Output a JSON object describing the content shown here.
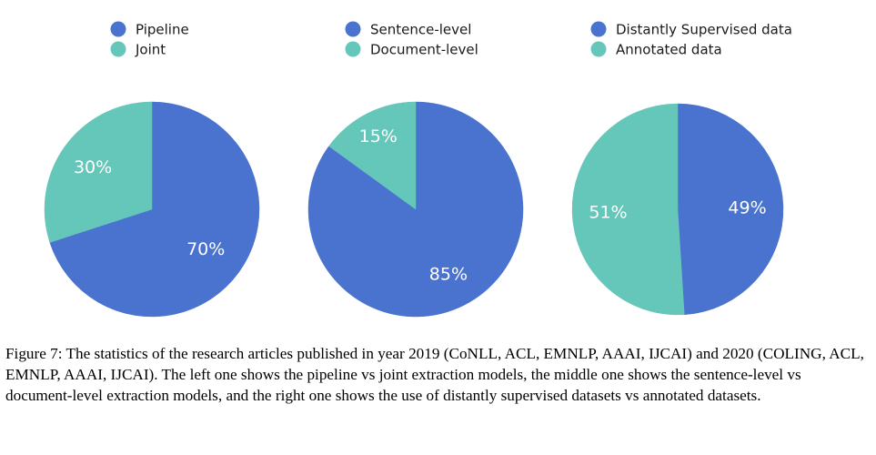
{
  "colors": {
    "blue": "#4a72cf",
    "teal": "#65c6ba"
  },
  "chart_data": [
    {
      "type": "pie",
      "position": "left",
      "legend": [
        "Pipeline",
        "Joint"
      ],
      "slices": [
        {
          "label": "Pipeline",
          "value": 70,
          "display": "70%",
          "color": "#4a72cf"
        },
        {
          "label": "Joint",
          "value": 30,
          "display": "30%",
          "color": "#65c6ba"
        }
      ]
    },
    {
      "type": "pie",
      "position": "middle",
      "legend": [
        "Sentence-level",
        "Document-level"
      ],
      "slices": [
        {
          "label": "Sentence-level",
          "value": 85,
          "display": "85%",
          "color": "#4a72cf"
        },
        {
          "label": "Document-level",
          "value": 15,
          "display": "15%",
          "color": "#65c6ba"
        }
      ]
    },
    {
      "type": "pie",
      "position": "right",
      "legend": [
        "Distantly Supervised data",
        "Annotated data"
      ],
      "slices": [
        {
          "label": "Distantly Supervised data",
          "value": 49,
          "display": "49%",
          "color": "#4a72cf"
        },
        {
          "label": "Annotated data",
          "value": 51,
          "display": "51%",
          "color": "#65c6ba"
        }
      ]
    }
  ],
  "caption": "Figure 7: The statistics of the research articles published in year 2019 (CoNLL, ACL, EMNLP, AAAI, IJCAI) and 2020 (COLING, ACL, EMNLP, AAAI, IJCAI). The left one shows the pipeline vs joint extraction models, the middle one shows the sentence-level vs document-level extraction models, and the right one shows the use of distantly supervised datasets vs annotated datasets."
}
